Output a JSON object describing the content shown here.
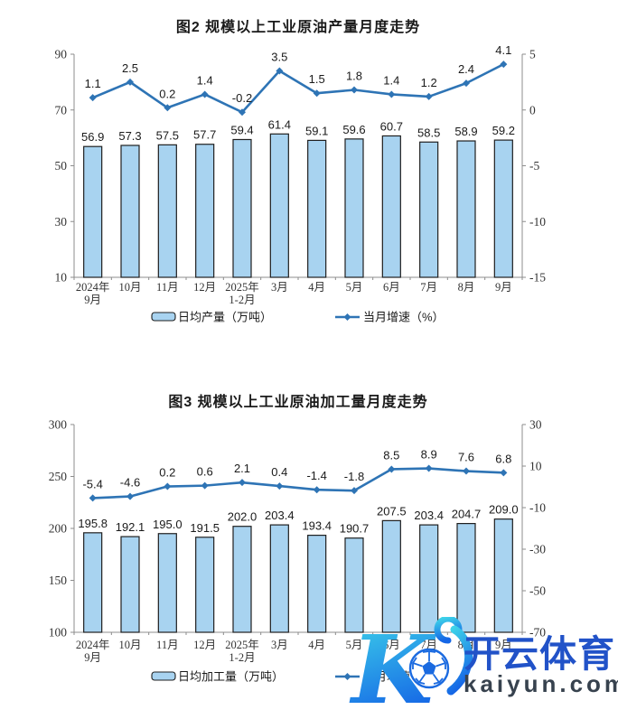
{
  "page": {
    "background": "#ffffff"
  },
  "chart_data": [
    {
      "type": "bar",
      "combo": "bar+line",
      "title": "图2  规模以上工业原油产量月度走势",
      "categories": [
        [
          "2024年",
          "9月"
        ],
        [
          "10月"
        ],
        [
          "11月"
        ],
        [
          "12月"
        ],
        [
          "2025年",
          "1-2月"
        ],
        [
          "3月"
        ],
        [
          "4月"
        ],
        [
          "5月"
        ],
        [
          "6月"
        ],
        [
          "7月"
        ],
        [
          "8月"
        ],
        [
          "9月"
        ]
      ],
      "series": [
        {
          "name": "日均产量（万吨）",
          "type": "bar",
          "axis": "left",
          "values": [
            56.9,
            57.3,
            57.5,
            57.7,
            59.4,
            61.4,
            59.1,
            59.6,
            60.7,
            58.5,
            58.9,
            59.2
          ]
        },
        {
          "name": "当月增速（%）",
          "type": "line",
          "axis": "right",
          "values": [
            1.1,
            2.5,
            0.2,
            1.4,
            -0.2,
            3.5,
            1.5,
            1.8,
            1.4,
            1.2,
            2.4,
            4.1
          ]
        }
      ],
      "left_axis": {
        "min": 10,
        "max": 90,
        "ticks": [
          10,
          30,
          50,
          70,
          90
        ]
      },
      "right_axis": {
        "min": -15,
        "max": 5,
        "ticks": [
          -15,
          -10,
          -5,
          0,
          5
        ]
      },
      "grid": false,
      "legend_position": "bottom"
    },
    {
      "type": "bar",
      "combo": "bar+line",
      "title": "图3  规模以上工业原油加工量月度走势",
      "categories": [
        [
          "2024年",
          "9月"
        ],
        [
          "10月"
        ],
        [
          "11月"
        ],
        [
          "12月"
        ],
        [
          "2025年",
          "1-2月"
        ],
        [
          "3月"
        ],
        [
          "4月"
        ],
        [
          "5月"
        ],
        [
          "6月"
        ],
        [
          "7月"
        ],
        [
          "8月"
        ],
        [
          "9月"
        ]
      ],
      "series": [
        {
          "name": "日均加工量（万吨）",
          "type": "bar",
          "axis": "left",
          "values": [
            195.8,
            192.1,
            195.0,
            191.5,
            202.0,
            203.4,
            193.4,
            190.7,
            207.5,
            203.4,
            204.7,
            209.0
          ]
        },
        {
          "name": "当月增速（%）",
          "type": "line",
          "axis": "right",
          "values": [
            -5.4,
            -4.6,
            0.2,
            0.6,
            2.1,
            0.4,
            -1.4,
            -1.8,
            8.5,
            8.9,
            7.6,
            6.8
          ]
        }
      ],
      "left_axis": {
        "min": 100,
        "max": 300,
        "ticks": [
          100,
          150,
          200,
          250,
          300
        ]
      },
      "right_axis": {
        "min": -70,
        "max": 30,
        "ticks": [
          -70,
          -50,
          -30,
          -10,
          10,
          30
        ]
      },
      "grid": false,
      "legend_position": "bottom"
    }
  ],
  "colors": {
    "bar_fill": "#A8D3F0",
    "bar_stroke": "#1f1f1f",
    "line": "#2E74B5",
    "axis": "#8c8c8c",
    "label": "#1a1a1a"
  },
  "watermark": {
    "logo_letter": "K",
    "brand_cn": "开云体育",
    "brand_domain": "kaiyun.com",
    "brand_blue": "#2152C8",
    "domain_color": "#37424E",
    "gradient_top": "#3ED4E9",
    "gradient_bottom": "#1566E6",
    "ball_blue": "#1A6AE0"
  }
}
